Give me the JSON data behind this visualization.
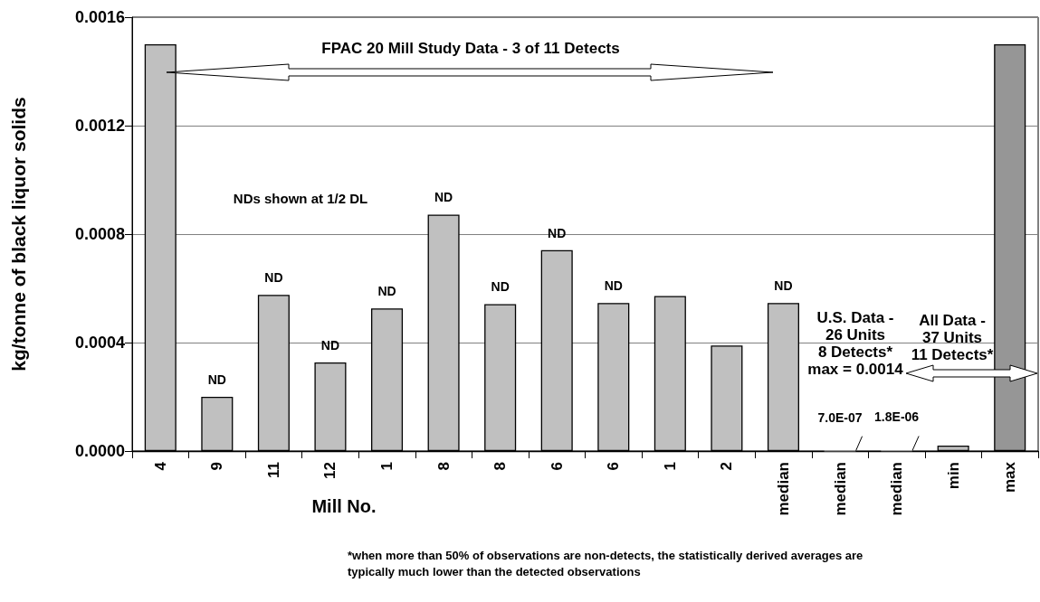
{
  "chart_data": {
    "type": "bar",
    "xlabel": "Mill No.",
    "ylabel": "kg/tonne of black liquor solids",
    "categories": [
      "4",
      "9",
      "11",
      "12",
      "1",
      "8",
      "8",
      "6",
      "6",
      "1",
      "2",
      "median",
      "median",
      "median",
      "min",
      "max"
    ],
    "values": [
      0.0015,
      0.0002,
      0.000576,
      0.000327,
      0.000526,
      0.000872,
      0.000542,
      0.000741,
      0.000546,
      0.000572,
      0.000389,
      0.000546,
      7e-07,
      1.8e-06,
      2e-05,
      0.0015
    ],
    "colors": [
      "#c0c0c0",
      "#c0c0c0",
      "#c0c0c0",
      "#c0c0c0",
      "#c0c0c0",
      "#c0c0c0",
      "#c0c0c0",
      "#c0c0c0",
      "#c0c0c0",
      "#c0c0c0",
      "#c0c0c0",
      "#c0c0c0",
      "#c0c0c0",
      "#c0c0c0",
      "#c0c0c0",
      "#969696"
    ],
    "value_labels": [
      null,
      "ND",
      "ND",
      "ND",
      "ND",
      "ND",
      "ND",
      "ND",
      "ND",
      null,
      null,
      "ND",
      "7.0E-07",
      "1.8E-06",
      null,
      null
    ],
    "ylim": [
      0,
      0.0016
    ],
    "yticks": [
      {
        "value": 0,
        "label": "0.0000"
      },
      {
        "value": 0.0004,
        "label": "0.0004"
      },
      {
        "value": 0.0008,
        "label": "0.0008"
      },
      {
        "value": 0.0012,
        "label": "0.0012"
      },
      {
        "value": 0.0016,
        "label": "0.0016"
      }
    ],
    "grid": "y",
    "annotations": [
      "FPAC 20 Mill Study Data - 3 of 11 Detects",
      "NDs shown at 1/2 DL",
      "U.S. Data -\n26 Units\n8 Detects*\nmax = 0.0014",
      "All Data -\n37 Units\n11 Detects*",
      "*when more than 50% of observations are non-detects, the statistically derived averages are typically much lower than the detected observations"
    ]
  }
}
